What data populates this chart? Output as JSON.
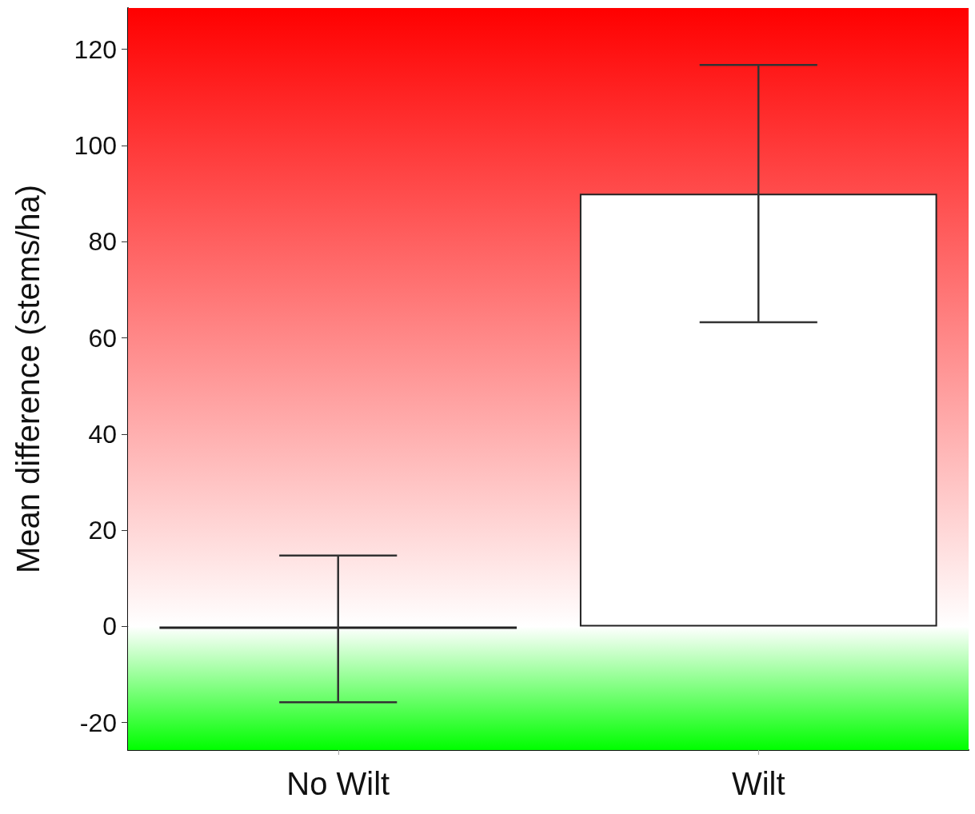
{
  "chart_data": {
    "type": "bar",
    "ylabel": "Mean difference (stems/ha)",
    "categories": [
      "No Wilt",
      "Wilt"
    ],
    "values": [
      -0.5,
      90
    ],
    "errors": [
      15.25,
      26.75
    ],
    "color": "#ffffff",
    "ylim": [
      -25.7,
      128.6
    ],
    "yticks": [
      -20,
      0,
      20,
      40,
      60,
      80,
      100,
      120
    ],
    "bands": [
      {
        "axis": "y",
        "from": 0,
        "to": 128.6,
        "color": "#ff0000"
      },
      {
        "axis": "y",
        "from": -25.7,
        "to": 0,
        "color": "#00ff00"
      }
    ],
    "grid": false
  }
}
